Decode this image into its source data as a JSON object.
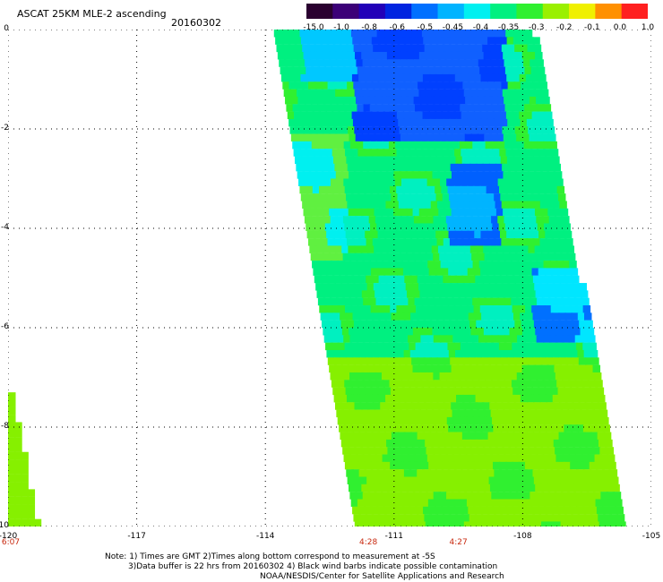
{
  "header": {
    "title": "ASCAT 25KM MLE-2 ascending",
    "date": "20160302"
  },
  "colorbar": {
    "labels": [
      "-15.0",
      "-1.0",
      "-0.8",
      "-0.6",
      "-0.5",
      "-0.45",
      "-0.4",
      "-0.35",
      "-0.3",
      "-0.2",
      "-0.1",
      "0.0",
      "1.0"
    ],
    "colors": [
      "#2a0030",
      "#3c0078",
      "#2200b8",
      "#0024e0",
      "#0070ff",
      "#00b4ff",
      "#00f0f0",
      "#00f080",
      "#30f030",
      "#9af000",
      "#f0f000",
      "#ff9000",
      "#ff2020"
    ]
  },
  "axes": {
    "y_labels": [
      "0",
      "-2",
      "-4",
      "-6",
      "-8",
      "-10"
    ],
    "y_values": [
      0,
      -2,
      -4,
      -6,
      -8,
      -10
    ],
    "x_labels": [
      "-120",
      "-117",
      "-114",
      "-111",
      "-108",
      "-105"
    ],
    "x_values": [
      -120,
      -117,
      -114,
      -111,
      -108,
      -105
    ],
    "x_range": [
      -120,
      -105
    ],
    "y_range": [
      0,
      -10
    ],
    "grid": "dotted"
  },
  "time_labels": [
    {
      "text": "6:07",
      "lon": -120
    },
    {
      "text": "4:28",
      "lon": -111.6
    },
    {
      "text": "4:27",
      "lon": -109.5
    }
  ],
  "notes": {
    "line1": "Note: 1) Times are GMT 2)Times along bottom correspond to measurement at -5S",
    "line2": "3)Data buffer is 22 hrs from 20160302 4) Black wind barbs indicate possible contamination",
    "line3": "NOAA/NESDIS/Center for Satellite Applications and Research"
  },
  "swaths": {
    "main": {
      "top_lon_left": -113.8,
      "top_lon_right": -107.8,
      "bottom_lon_left": -111.9,
      "bottom_lon_right": -105.6
    },
    "left": {
      "lon_left": -120,
      "lon_right": -119.4,
      "lat_top": -7.3,
      "lat_bottom": -10
    }
  },
  "field_regions": [
    {
      "label": "-0.6",
      "lon": -110.5,
      "lat": -0.6
    },
    {
      "label": "-0.45",
      "lon": -109.2,
      "lat": -3.3
    },
    {
      "label": "-0.5",
      "lon": -106.7,
      "lat": -5.5
    },
    {
      "label": "-0.3",
      "lon": -110,
      "lat": -8.5
    }
  ]
}
